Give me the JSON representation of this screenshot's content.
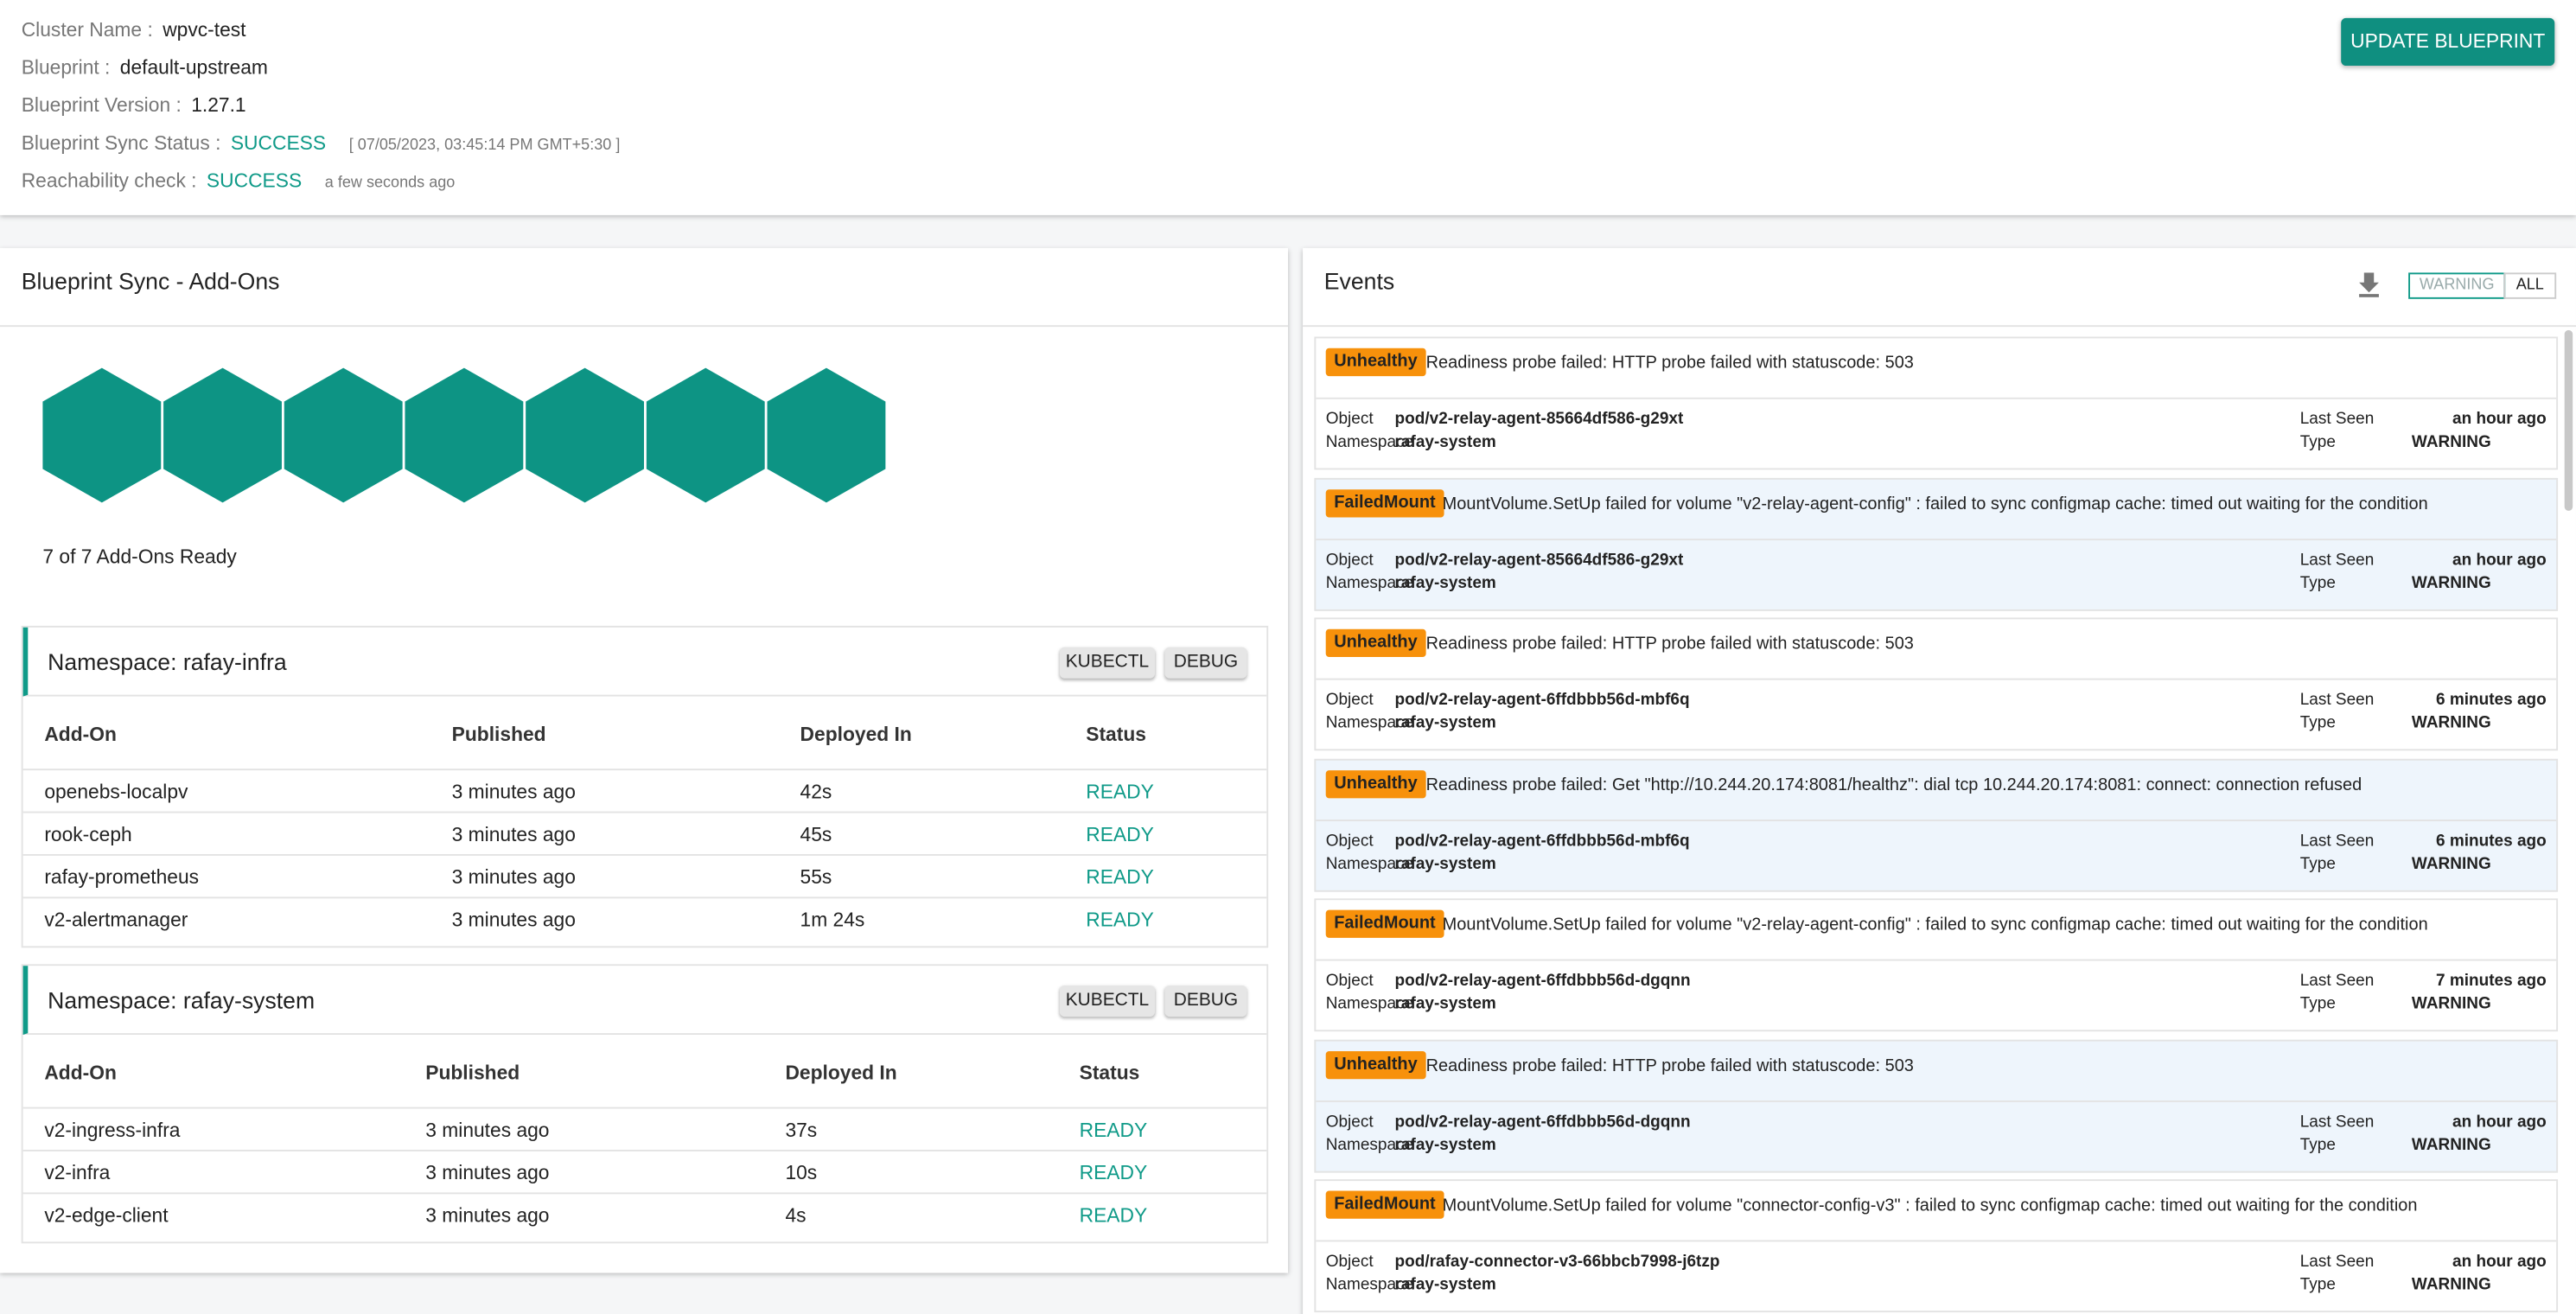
{
  "header": {
    "fields": [
      {
        "label": "Cluster Name :",
        "value": "wpvc-test"
      },
      {
        "label": "Blueprint :",
        "value": "default-upstream"
      },
      {
        "label": "Blueprint Version :",
        "value": "1.27.1"
      },
      {
        "label": "Blueprint Sync Status :",
        "value": "SUCCESS",
        "note": "[ 07/05/2023, 03:45:14 PM GMT+5:30 ]"
      },
      {
        "label": "Reachability check :",
        "value": "SUCCESS",
        "note": "a few seconds ago"
      }
    ],
    "button": "UPDATE BLUEPRINT"
  },
  "addons": {
    "title": "Blueprint Sync - Add-Ons",
    "ready_text": "7 of 7 Add-Ons Ready",
    "columns": [
      "Add-On",
      "Published",
      "Deployed In",
      "Status"
    ],
    "buttons": [
      "KUBECTL",
      "DEBUG"
    ],
    "namespaces": [
      {
        "title": "Namespace: rafay-infra",
        "rows": [
          [
            "openebs-localpv",
            "3 minutes ago",
            "42s",
            "READY"
          ],
          [
            "rook-ceph",
            "3 minutes ago",
            "45s",
            "READY"
          ],
          [
            "rafay-prometheus",
            "3 minutes ago",
            "55s",
            "READY"
          ],
          [
            "v2-alertmanager",
            "3 minutes ago",
            "1m 24s",
            "READY"
          ]
        ]
      },
      {
        "title": "Namespace: rafay-system",
        "rows": [
          [
            "v2-ingress-infra",
            "3 minutes ago",
            "37s",
            "READY"
          ],
          [
            "v2-infra",
            "3 minutes ago",
            "10s",
            "READY"
          ],
          [
            "v2-edge-client",
            "3 minutes ago",
            "4s",
            "READY"
          ]
        ]
      }
    ]
  },
  "events": {
    "title": "Events",
    "toggle": [
      "WARNING",
      "ALL"
    ],
    "labels": {
      "object": "Object",
      "namespace": "Namespace",
      "last_seen": "Last Seen",
      "type": "Type"
    },
    "items": [
      {
        "tag": "Unhealthy",
        "message": "Readiness probe failed: HTTP probe failed with statuscode: 503",
        "object": "pod/v2-relay-agent-85664df586-g29xt",
        "namespace": "rafay-system",
        "last_seen": "an hour ago",
        "type": "WARNING"
      },
      {
        "tag": "FailedMount",
        "message": "MountVolume.SetUp failed for volume \"v2-relay-agent-config\" : failed to sync configmap cache: timed out waiting for the condition",
        "object": "pod/v2-relay-agent-85664df586-g29xt",
        "namespace": "rafay-system",
        "last_seen": "an hour ago",
        "type": "WARNING"
      },
      {
        "tag": "Unhealthy",
        "message": "Readiness probe failed: HTTP probe failed with statuscode: 503",
        "object": "pod/v2-relay-agent-6ffdbbb56d-mbf6q",
        "namespace": "rafay-system",
        "last_seen": "6 minutes ago",
        "type": "WARNING"
      },
      {
        "tag": "Unhealthy",
        "message": "Readiness probe failed: Get \"http://10.244.20.174:8081/healthz\": dial tcp 10.244.20.174:8081: connect: connection refused",
        "object": "pod/v2-relay-agent-6ffdbbb56d-mbf6q",
        "namespace": "rafay-system",
        "last_seen": "6 minutes ago",
        "type": "WARNING"
      },
      {
        "tag": "FailedMount",
        "message": "MountVolume.SetUp failed for volume \"v2-relay-agent-config\" : failed to sync configmap cache: timed out waiting for the condition",
        "object": "pod/v2-relay-agent-6ffdbbb56d-dgqnn",
        "namespace": "rafay-system",
        "last_seen": "7 minutes ago",
        "type": "WARNING"
      },
      {
        "tag": "Unhealthy",
        "message": "Readiness probe failed: HTTP probe failed with statuscode: 503",
        "object": "pod/v2-relay-agent-6ffdbbb56d-dgqnn",
        "namespace": "rafay-system",
        "last_seen": "an hour ago",
        "type": "WARNING"
      },
      {
        "tag": "FailedMount",
        "message": "MountVolume.SetUp failed for volume \"connector-config-v3\" : failed to sync configmap cache: timed out waiting for the condition",
        "object": "pod/rafay-connector-v3-66bbcb7998-j6tzp",
        "namespace": "rafay-system",
        "last_seen": "an hour ago",
        "type": "WARNING"
      }
    ]
  }
}
